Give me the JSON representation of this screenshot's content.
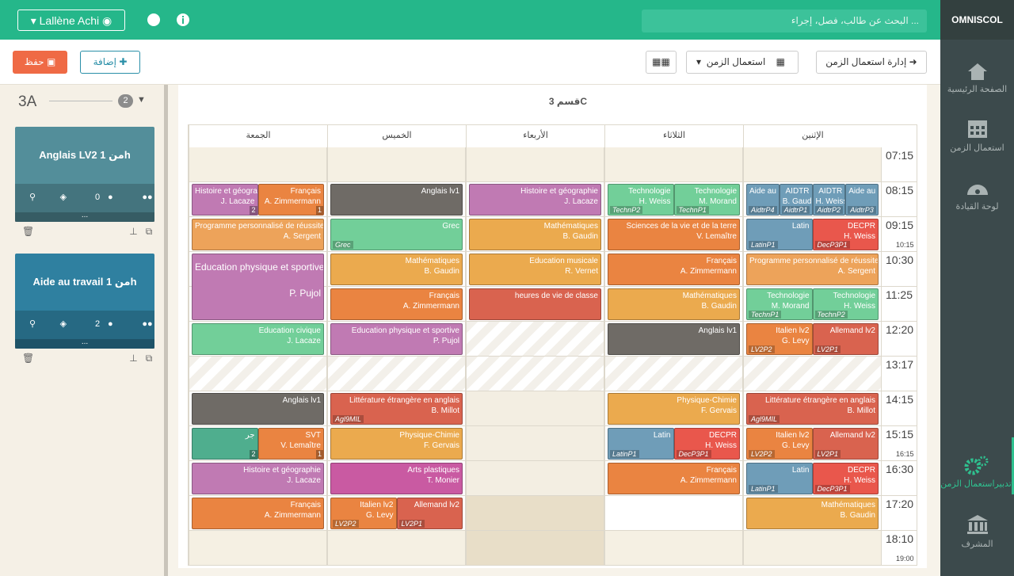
{
  "brand": "OMNISCOL",
  "nav": {
    "items": [
      "الصفحة الرئيسية",
      "استعمال الزمن",
      "لوحة القيادة",
      "تدبيراستعمال الزمن",
      "المشرف"
    ]
  },
  "topbar": {
    "user": "Lallène Achi",
    "search_placeholder": "البحث عن طالب، فصل، إجراء ..."
  },
  "toolbar": {
    "save": "حفظ",
    "add": "إضافة",
    "view": "استعمال الزمن",
    "manage": "إدارة استعمال الزمن"
  },
  "panel": {
    "class": "3A",
    "count": "2",
    "cards": [
      {
        "title": "Anglais LV2 من 1h",
        "students": "0"
      },
      {
        "title": "Aide au travail من 1h",
        "students": "2"
      }
    ],
    "more": "..."
  },
  "timetable": {
    "title": "قسم 3C",
    "days": [
      "الإثنين",
      "الثلاثاء",
      "الأربعاء",
      "الخميس",
      "الجمعة"
    ],
    "times": [
      "07:15",
      "08:15",
      "09:15",
      "10:30",
      "11:25",
      "12:20",
      "13:17",
      "14:15",
      "15:15",
      "16:30",
      "17:20",
      "18:10"
    ],
    "end_times": [
      "10:15",
      "16:15",
      "19:00"
    ],
    "lessons": [
      {
        "subject": "Aide au travail",
        "tag": "AidtrP3",
        "color": "#6f9db8"
      },
      {
        "subject": "AIDTR",
        "teacher": "H. Weiss",
        "tag": "AidtrP2",
        "color": "#6f9db8"
      },
      {
        "subject": "AIDTR",
        "teacher": "B. Gaudin",
        "tag": "AidtrP1",
        "color": "#6f9db8"
      },
      {
        "subject": "Aide au travail",
        "tag": "AidtrP4",
        "color": "#6f9db8"
      },
      {
        "subject": "DECPR",
        "teacher": "H. Weiss",
        "tag": "DecP3P1",
        "color": "#e9574c"
      },
      {
        "subject": "Latin",
        "tag": "LatinP1",
        "color": "#6f9db8"
      },
      {
        "subject": "Programme personnalisé de réussite éducative",
        "teacher": "A. Sergent",
        "color": "#eda35a"
      },
      {
        "subject": "Technologie",
        "teacher": "H. Weiss",
        "tag": "TechnP2",
        "color": "#72cf99"
      },
      {
        "subject": "Technologie",
        "teacher": "M. Morand",
        "tag": "TechnP1",
        "color": "#72cf99"
      },
      {
        "subject": "Allemand lv2",
        "tag": "LV2P1",
        "color": "#d9634f"
      },
      {
        "subject": "Italien lv2",
        "teacher": "G. Levy",
        "tag": "LV2P2",
        "color": "#ea8441"
      },
      {
        "subject": "Littérature étrangère en anglais",
        "teacher": "B. Millot",
        "tag": "Agl9MIL",
        "color": "#d9634f"
      },
      {
        "subject": "Allemand lv2",
        "tag": "LV2P1",
        "color": "#d9634f"
      },
      {
        "subject": "Italien lv2",
        "teacher": "G. Levy",
        "tag": "LV2P2",
        "color": "#ea8441"
      },
      {
        "subject": "DECPR",
        "teacher": "H. Weiss",
        "tag": "DecP3P1",
        "color": "#e9574c"
      },
      {
        "subject": "Latin",
        "tag": "LatinP1",
        "color": "#6f9db8"
      },
      {
        "subject": "Mathématiques",
        "teacher": "B. Gaudin",
        "color": "#ebaa4e"
      },
      {
        "subject": "Technologie",
        "teacher": "M. Morand",
        "tag": "TechnP1",
        "color": "#72cf99"
      },
      {
        "subject": "Technologie",
        "teacher": "H. Weiss",
        "tag": "TechnP2",
        "color": "#72cf99"
      },
      {
        "subject": "Sciences de la vie et de la terre",
        "teacher": "V. Lemaître",
        "color": "#ea8441"
      },
      {
        "subject": "Français",
        "teacher": "A. Zimmermann",
        "color": "#ea8441"
      },
      {
        "subject": "Mathématiques",
        "teacher": "B. Gaudin",
        "color": "#ebaa4e"
      },
      {
        "subject": "Anglais lv1",
        "color": "#6f6b66"
      },
      {
        "subject": "Physique-Chimie",
        "teacher": "F. Gervais",
        "color": "#ebaa4e"
      },
      {
        "subject": "DECPR",
        "teacher": "H. Weiss",
        "tag": "DecP3P1",
        "color": "#e9574c"
      },
      {
        "subject": "Latin",
        "tag": "LatinP1",
        "color": "#6f9db8"
      },
      {
        "subject": "Français",
        "teacher": "A. Zimmermann",
        "color": "#ea8441"
      },
      {
        "subject": "Histoire et géographie",
        "teacher": "J. Lacaze",
        "color": "#c07ab3"
      },
      {
        "subject": "Mathématiques",
        "teacher": "B. Gaudin",
        "color": "#ebaa4e"
      },
      {
        "subject": "Education musicale",
        "teacher": "R. Vernet",
        "color": "#ebaa4e"
      },
      {
        "subject": "heures de vie de classe",
        "color": "#d9634f"
      },
      {
        "subject": "Anglais lv1",
        "color": "#6f6b66"
      },
      {
        "subject": "Grec",
        "tag": "Grec",
        "color": "#72cf99"
      },
      {
        "subject": "Mathématiques",
        "teacher": "B. Gaudin",
        "color": "#ebaa4e"
      },
      {
        "subject": "Français",
        "teacher": "A. Zimmermann",
        "color": "#ea8441"
      },
      {
        "subject": "Education physique et sportive",
        "teacher": "P. Pujol",
        "color": "#c07ab3"
      },
      {
        "subject": "Littérature étrangère en anglais",
        "teacher": "B. Millot",
        "tag": "Agl9MIL",
        "color": "#d9634f"
      },
      {
        "subject": "Physique-Chimie",
        "teacher": "F. Gervais",
        "color": "#ebaa4e"
      },
      {
        "subject": "Arts plastiques",
        "teacher": "T. Monier",
        "color": "#c95aa2"
      },
      {
        "subject": "Allemand lv2",
        "tag": "LV2P1",
        "color": "#d9634f"
      },
      {
        "subject": "Italien lv2",
        "teacher": "G. Levy",
        "tag": "LV2P2",
        "color": "#ea8441"
      },
      {
        "subject": "Français",
        "teacher": "A. Zimmermann",
        "badge": "1",
        "color": "#ea8441"
      },
      {
        "subject": "Histoire et géographie",
        "teacher": "J. Lacaze",
        "badge": "2",
        "color": "#c07ab3"
      },
      {
        "subject": "Programme personnalisé de réussite éducative",
        "teacher": "A. Sergent",
        "color": "#eda35a"
      },
      {
        "subject": "Education physique et sportive",
        "teacher": "P. Pujol",
        "color": "#c07ab3"
      },
      {
        "subject": "Education civique",
        "teacher": "J. Lacaze",
        "color": "#72cf99"
      },
      {
        "subject": "Anglais lv1",
        "color": "#6f6b66"
      },
      {
        "subject": "SVT",
        "teacher": "V. Lemaître",
        "badge": "1",
        "color": "#ea8441"
      },
      {
        "subject": "جر",
        "badge": "2",
        "color": "#4fae8e"
      },
      {
        "subject": "Histoire et géographie",
        "teacher": "J. Lacaze",
        "color": "#c07ab3"
      },
      {
        "subject": "Français",
        "teacher": "A. Zimmermann",
        "color": "#ea8441"
      }
    ]
  }
}
